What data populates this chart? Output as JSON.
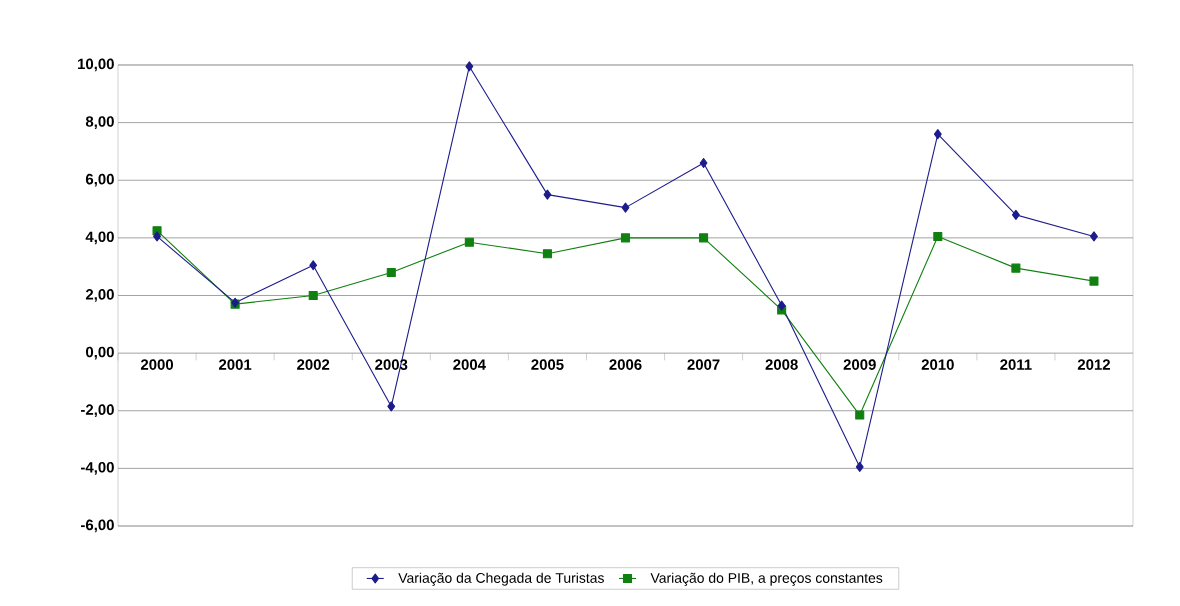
{
  "chart_data": {
    "type": "line",
    "categories": [
      "2000",
      "2001",
      "2002",
      "2003",
      "2004",
      "2005",
      "2006",
      "2007",
      "2008",
      "2009",
      "2010",
      "2011",
      "2012"
    ],
    "series": [
      {
        "name": "Variação da Chegada de Turistas",
        "color": "#1c1c8c",
        "marker": "diamond",
        "values": [
          4.05,
          1.75,
          3.05,
          -1.85,
          9.95,
          5.5,
          5.05,
          6.6,
          1.65,
          -3.95,
          7.6,
          4.8,
          4.05
        ]
      },
      {
        "name": "Variação do PIB, a preços constantes",
        "color": "#108010",
        "marker": "square",
        "values": [
          4.25,
          1.7,
          2.0,
          2.8,
          3.85,
          3.45,
          4.0,
          4.0,
          1.5,
          -2.15,
          4.05,
          2.95,
          2.5
        ]
      }
    ],
    "ylim": [
      -6,
      10
    ],
    "yticks": [
      {
        "value": -6,
        "label": "-6,00"
      },
      {
        "value": -4,
        "label": "-4,00"
      },
      {
        "value": -2,
        "label": "-2,00"
      },
      {
        "value": 0,
        "label": "0,00"
      },
      {
        "value": 2,
        "label": "2,00"
      },
      {
        "value": 4,
        "label": "4,00"
      },
      {
        "value": 6,
        "label": "6,00"
      },
      {
        "value": 8,
        "label": "8,00"
      },
      {
        "value": 10,
        "label": "10,00"
      }
    ],
    "grid": "y",
    "legend": "bottom",
    "line_style": "solid"
  }
}
